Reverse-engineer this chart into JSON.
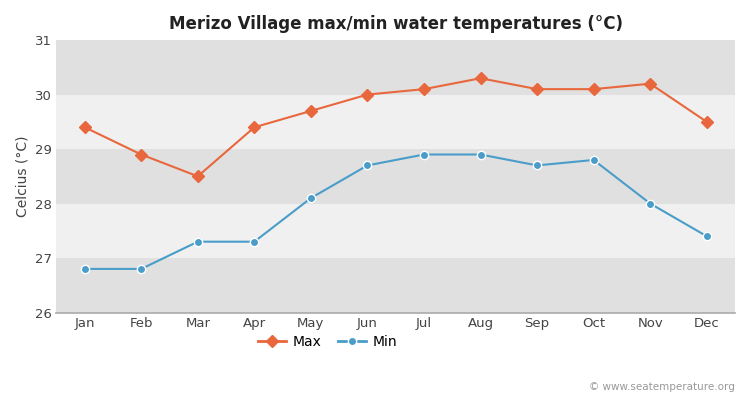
{
  "title": "Merizo Village max/min water temperatures (°C)",
  "ylabel": "Celcius (°C)",
  "months": [
    "Jan",
    "Feb",
    "Mar",
    "Apr",
    "May",
    "Jun",
    "Jul",
    "Aug",
    "Sep",
    "Oct",
    "Nov",
    "Dec"
  ],
  "max_values": [
    29.4,
    28.9,
    28.5,
    29.4,
    29.7,
    30.0,
    30.1,
    30.3,
    30.1,
    30.1,
    30.2,
    29.5
  ],
  "min_values": [
    26.8,
    26.8,
    27.3,
    27.3,
    28.1,
    28.7,
    28.9,
    28.9,
    28.7,
    28.8,
    28.0,
    27.4
  ],
  "max_color": "#e8673c",
  "min_color": "#4a9dc9",
  "ylim": [
    26,
    31
  ],
  "yticks": [
    26,
    27,
    28,
    29,
    30,
    31
  ],
  "fig_bg_color": "#ffffff",
  "band_light": "#f0f0f0",
  "band_dark": "#e0e0e0",
  "watermark": "© www.seatemperature.org",
  "legend_max": "Max",
  "legend_min": "Min"
}
